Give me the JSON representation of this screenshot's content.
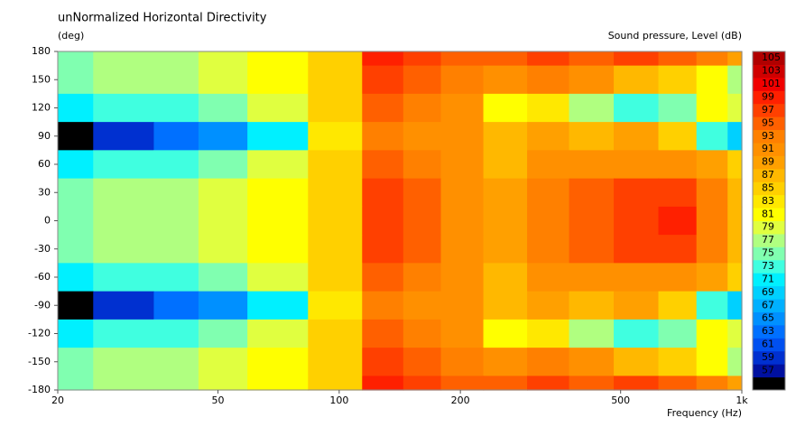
{
  "chart_data": {
    "type": "contour",
    "title": "unNormalized Horizontal Directivity",
    "ylabel": "(deg)",
    "xlabel": "Frequency  (Hz)",
    "log_x": true,
    "x": [
      20,
      30,
      40,
      50,
      70,
      100,
      130,
      160,
      200,
      260,
      330,
      420,
      550,
      700,
      850,
      1000
    ],
    "y": [
      180,
      150,
      120,
      90,
      60,
      30,
      0,
      -30,
      -60,
      -90,
      -120,
      -150,
      -180
    ],
    "z": [
      [
        75,
        77,
        78,
        79,
        81,
        85,
        99,
        97,
        95,
        95,
        97,
        95,
        97,
        95,
        93,
        89
      ],
      [
        75,
        77,
        78,
        79,
        81,
        85,
        97,
        95,
        93,
        91,
        93,
        91,
        87,
        85,
        81,
        77
      ],
      [
        71,
        73,
        74,
        75,
        79,
        85,
        95,
        93,
        91,
        81,
        83,
        77,
        73,
        75,
        81,
        79
      ],
      [
        55,
        59,
        63,
        65,
        71,
        83,
        93,
        91,
        91,
        87,
        89,
        87,
        89,
        85,
        73,
        69
      ],
      [
        71,
        73,
        74,
        75,
        79,
        85,
        95,
        93,
        91,
        87,
        91,
        91,
        91,
        91,
        89,
        85
      ],
      [
        75,
        77,
        78,
        79,
        81,
        85,
        97,
        95,
        91,
        89,
        93,
        95,
        97,
        97,
        93,
        87
      ],
      [
        75,
        77,
        78,
        79,
        81,
        85,
        97,
        95,
        91,
        89,
        93,
        95,
        97,
        99,
        93,
        87
      ],
      [
        75,
        77,
        78,
        79,
        81,
        85,
        97,
        95,
        91,
        89,
        93,
        95,
        97,
        97,
        93,
        87
      ],
      [
        71,
        73,
        74,
        75,
        79,
        85,
        95,
        93,
        91,
        87,
        91,
        91,
        91,
        91,
        89,
        85
      ],
      [
        55,
        59,
        63,
        65,
        71,
        83,
        93,
        91,
        91,
        87,
        89,
        87,
        89,
        85,
        73,
        69
      ],
      [
        71,
        73,
        74,
        75,
        79,
        85,
        95,
        93,
        91,
        81,
        83,
        77,
        73,
        75,
        81,
        79
      ],
      [
        75,
        77,
        78,
        79,
        81,
        85,
        97,
        95,
        93,
        91,
        93,
        91,
        87,
        85,
        81,
        77
      ],
      [
        75,
        77,
        78,
        79,
        81,
        85,
        99,
        97,
        95,
        95,
        97,
        95,
        97,
        95,
        93,
        89
      ]
    ],
    "xlim": [
      20,
      1000
    ],
    "ylim": [
      -180,
      180
    ],
    "xticks": [
      20,
      50,
      100,
      200,
      500,
      {
        "value": 1000,
        "label": "1k"
      }
    ],
    "yticks": [
      180,
      150,
      120,
      90,
      60,
      30,
      0,
      -30,
      -60,
      -90,
      -120,
      -150,
      -180
    ],
    "colorbar": {
      "label": "Sound pressure, Level  (dB)",
      "levels": [
        55,
        57,
        59,
        61,
        63,
        65,
        67,
        69,
        71,
        73,
        75,
        77,
        79,
        81,
        83,
        85,
        87,
        89,
        91,
        93,
        95,
        97,
        99,
        101,
        103,
        105
      ],
      "colors": [
        "#000000",
        "#0010a0",
        "#0030d0",
        "#0050f0",
        "#0070ff",
        "#0090ff",
        "#00b0ff",
        "#00d0ff",
        "#00f0ff",
        "#40ffe0",
        "#80ffb0",
        "#b0ff80",
        "#e0ff40",
        "#ffff00",
        "#ffe800",
        "#ffd000",
        "#ffb800",
        "#ffa000",
        "#ff9000",
        "#ff8000",
        "#ff6000",
        "#ff4000",
        "#ff2000",
        "#f00000",
        "#d00000",
        "#b00000"
      ]
    }
  }
}
